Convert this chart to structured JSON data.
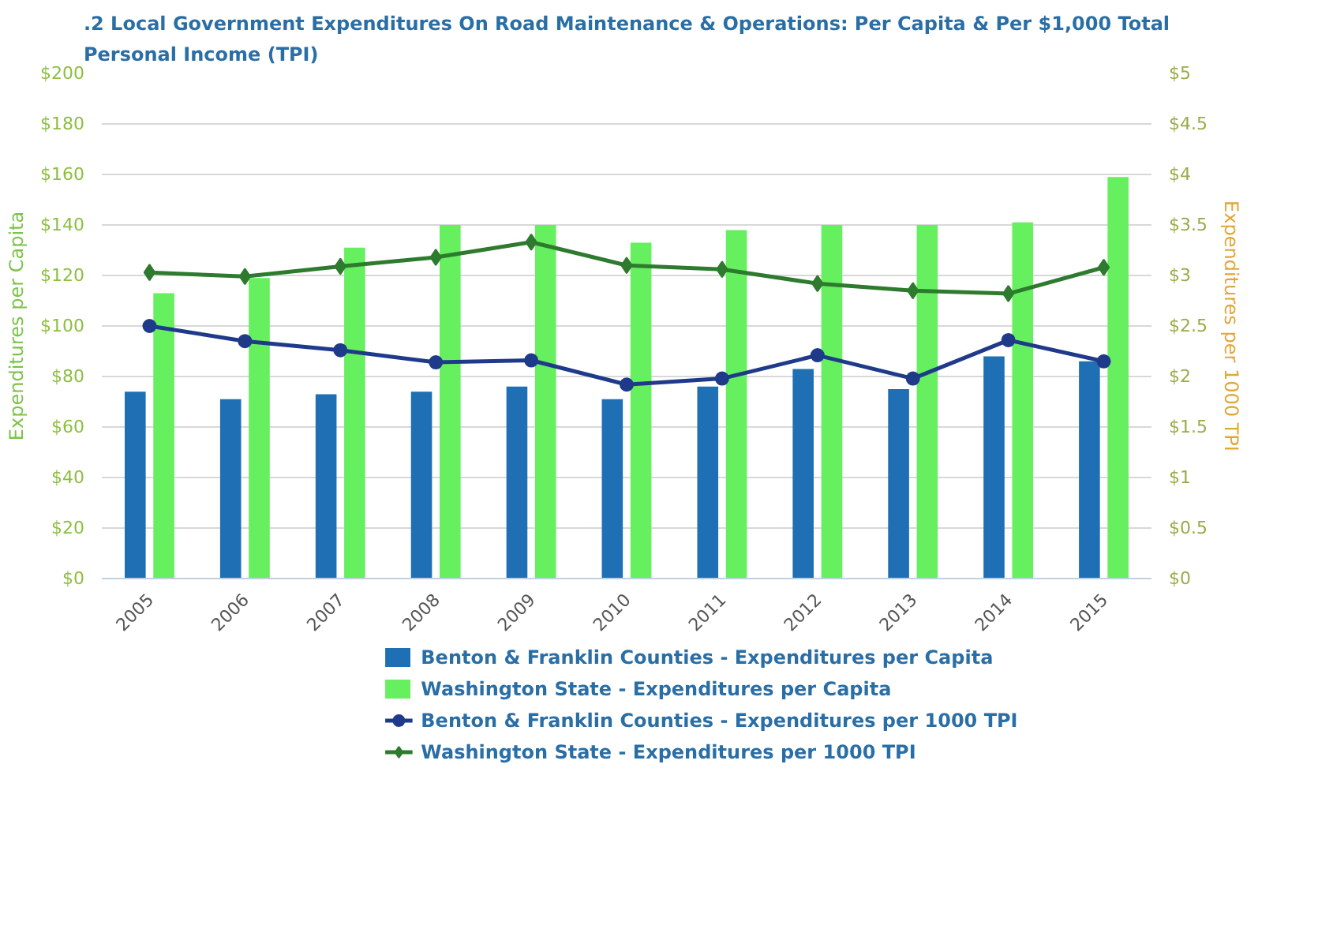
{
  "chart_data": {
    "type": "bar",
    "title": ".2 Local Government Expenditures On Road Maintenance & Operations: Per Capita & Per $1,000 Total Personal Income (TPI)",
    "ylabel": "Expenditures per Capita",
    "y2label": "Expenditures per 1000 TPI",
    "categories": [
      "2005",
      "2006",
      "2007",
      "2008",
      "2009",
      "2010",
      "2011",
      "2012",
      "2013",
      "2014",
      "2015"
    ],
    "series": [
      {
        "name": "Benton & Franklin Counties - Expenditures per Capita",
        "color": "#1f6fb5",
        "values": [
          74,
          71,
          73,
          74,
          76,
          71,
          76,
          83,
          75,
          88,
          86
        ]
      },
      {
        "name": "Washington State - Expenditures per Capita",
        "color": "#66ef5e",
        "values": [
          113,
          119,
          131,
          140,
          140,
          133,
          138,
          140,
          140,
          141,
          159
        ]
      },
      {
        "name": "Benton & Franklin Counties - Expenditures per 1000 TPI",
        "type": "line",
        "axis": "y2",
        "marker": "circle",
        "color": "#1f3a8a",
        "values": [
          2.5,
          2.35,
          2.26,
          2.14,
          2.16,
          1.92,
          1.98,
          2.21,
          1.98,
          2.36,
          2.15
        ]
      },
      {
        "name": "Washington State - Expenditures per 1000 TPI",
        "type": "line",
        "axis": "y2",
        "marker": "diamond",
        "color": "#2e7a2e",
        "values": [
          3.03,
          2.99,
          3.09,
          3.18,
          3.33,
          3.1,
          3.06,
          2.92,
          2.85,
          2.82,
          3.08
        ]
      }
    ],
    "ylim": [
      0,
      200
    ],
    "yticks": [
      {
        "value": 0,
        "label": "$0"
      },
      {
        "value": 20,
        "label": "$20"
      },
      {
        "value": 40,
        "label": "$40"
      },
      {
        "value": 60,
        "label": "$60"
      },
      {
        "value": 80,
        "label": "$80"
      },
      {
        "value": 100,
        "label": "$100"
      },
      {
        "value": 120,
        "label": "$120"
      },
      {
        "value": 140,
        "label": "$140"
      },
      {
        "value": 160,
        "label": "$160"
      },
      {
        "value": 180,
        "label": "$180"
      },
      {
        "value": 200,
        "label": "$200"
      }
    ],
    "y2lim": [
      0,
      5
    ],
    "y2ticks": [
      {
        "value": 0,
        "label": "$0"
      },
      {
        "value": 0.5,
        "label": "$0.5"
      },
      {
        "value": 1,
        "label": "$1"
      },
      {
        "value": 1.5,
        "label": "$1.5"
      },
      {
        "value": 2,
        "label": "$2"
      },
      {
        "value": 2.5,
        "label": "$2.5"
      },
      {
        "value": 3,
        "label": "$3"
      },
      {
        "value": 3.5,
        "label": "$3.5"
      },
      {
        "value": 4,
        "label": "$4"
      },
      {
        "value": 4.5,
        "label": "$4.5"
      },
      {
        "value": 5,
        "label": "$5"
      }
    ],
    "grid": "y",
    "legend": "bottom"
  }
}
